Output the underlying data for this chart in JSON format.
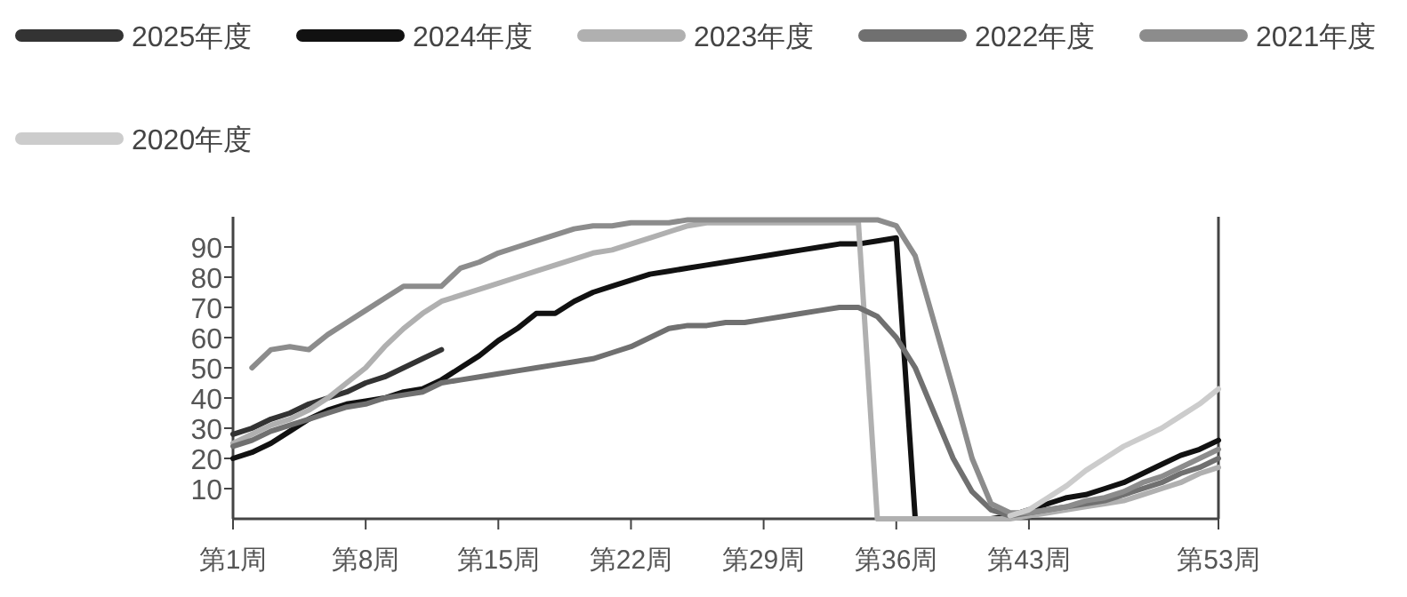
{
  "chart_data": {
    "type": "line",
    "ylim": [
      0,
      100
    ],
    "categories": [
      "第1周",
      null,
      null,
      null,
      null,
      null,
      null,
      "第8周",
      null,
      null,
      null,
      null,
      null,
      null,
      "第15周",
      null,
      null,
      null,
      null,
      null,
      null,
      "第22周",
      null,
      null,
      null,
      null,
      null,
      null,
      "第29周",
      null,
      null,
      null,
      null,
      null,
      null,
      "第36周",
      null,
      null,
      null,
      null,
      null,
      null,
      "第43周",
      null,
      null,
      null,
      null,
      null,
      null,
      null,
      null,
      null,
      "第53周"
    ],
    "yticks": [
      10,
      20,
      30,
      40,
      50,
      60,
      70,
      80,
      90
    ],
    "grid": false,
    "legend": "top",
    "marker": "none",
    "line_style": "solid",
    "series": [
      {
        "name": "2025年度",
        "color": "#333333",
        "values": [
          28,
          30,
          33,
          35,
          38,
          40,
          42,
          45,
          47,
          50,
          53,
          56,
          null,
          null,
          null,
          null,
          null,
          null,
          null,
          null,
          null,
          null,
          null,
          null,
          null,
          null,
          null,
          null,
          null,
          null,
          null,
          null,
          null,
          null,
          null,
          null,
          null,
          null,
          null,
          null,
          null,
          null,
          null,
          null,
          null,
          null,
          null,
          null,
          null,
          null,
          null,
          null,
          null
        ]
      },
      {
        "name": "2024年度",
        "color": "#111111",
        "values": [
          20,
          22,
          25,
          29,
          33,
          36,
          38,
          39,
          40,
          42,
          43,
          46,
          50,
          54,
          59,
          63,
          68,
          68,
          72,
          75,
          77,
          79,
          81,
          82,
          83,
          84,
          85,
          86,
          87,
          88,
          89,
          90,
          91,
          91,
          92,
          93,
          0,
          0,
          0,
          0,
          0,
          1,
          3,
          5,
          7,
          8,
          10,
          12,
          15,
          18,
          21,
          23,
          26
        ]
      },
      {
        "name": "2023年度",
        "color": "#b0b0b0",
        "values": [
          25,
          28,
          31,
          33,
          36,
          40,
          45,
          50,
          57,
          63,
          68,
          72,
          74,
          76,
          78,
          80,
          82,
          84,
          86,
          88,
          89,
          91,
          93,
          95,
          97,
          98,
          98,
          98,
          98,
          98,
          98,
          98,
          98,
          98,
          0,
          0,
          0,
          0,
          0,
          0,
          0,
          0,
          1,
          2,
          3,
          4,
          5,
          6,
          8,
          10,
          12,
          15,
          17
        ]
      },
      {
        "name": "2022年度",
        "color": "#707070",
        "values": [
          24,
          26,
          29,
          31,
          33,
          35,
          37,
          38,
          40,
          41,
          42,
          45,
          46,
          47,
          48,
          49,
          50,
          51,
          52,
          53,
          55,
          57,
          60,
          63,
          64,
          64,
          65,
          65,
          66,
          67,
          68,
          69,
          70,
          70,
          67,
          60,
          50,
          35,
          20,
          9,
          3,
          1,
          2,
          3,
          4,
          5,
          6,
          8,
          10,
          12,
          15,
          17,
          20
        ]
      },
      {
        "name": "2021年度",
        "color": "#8c8c8c",
        "values": [
          null,
          50,
          56,
          57,
          56,
          61,
          65,
          69,
          73,
          77,
          77,
          77,
          83,
          85,
          88,
          90,
          92,
          94,
          96,
          97,
          97,
          98,
          98,
          98,
          99,
          99,
          99,
          99,
          99,
          99,
          99,
          99,
          99,
          99,
          99,
          97,
          87,
          65,
          43,
          20,
          5,
          2,
          2,
          3,
          4,
          6,
          7,
          9,
          12,
          14,
          17,
          20,
          23
        ]
      },
      {
        "name": "2020年度",
        "color": "#cccccc",
        "values": [
          null,
          null,
          null,
          null,
          null,
          null,
          null,
          null,
          null,
          null,
          null,
          null,
          null,
          null,
          null,
          null,
          null,
          null,
          null,
          null,
          null,
          null,
          null,
          null,
          null,
          null,
          null,
          null,
          null,
          null,
          null,
          null,
          null,
          null,
          null,
          null,
          null,
          null,
          null,
          null,
          null,
          1,
          3,
          7,
          11,
          16,
          20,
          24,
          27,
          30,
          34,
          38,
          43
        ]
      }
    ]
  }
}
